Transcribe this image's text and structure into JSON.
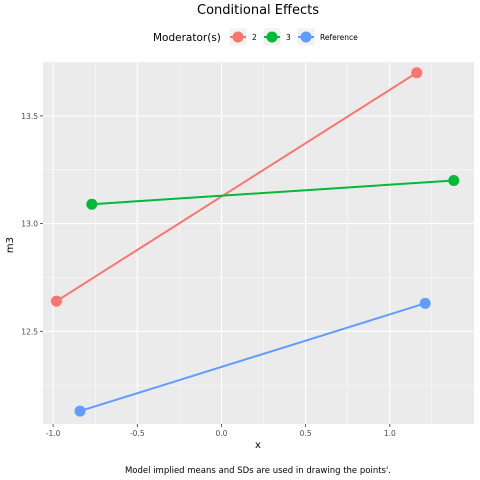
{
  "chart_data": {
    "type": "line",
    "title": "Conditional Effects",
    "xlabel": "x",
    "ylabel": "m3",
    "caption": "Model implied means and SDs are used in drawing the points'.",
    "xlim": [
      -1.06,
      1.5
    ],
    "ylim": [
      12.07,
      13.75
    ],
    "x_ticks": [
      -1.0,
      -0.5,
      0.0,
      0.5,
      1.0
    ],
    "x_tick_labels": [
      "-1.0",
      "-0.5",
      "0.0",
      "0.5",
      "1.0"
    ],
    "y_ticks": [
      12.5,
      13.0,
      13.5
    ],
    "y_tick_labels": [
      "12.5",
      "13.0",
      "13.5"
    ],
    "grid": true,
    "legend": {
      "title": "Moderator(s)",
      "placement": "top"
    },
    "series": [
      {
        "name": "2",
        "color": "#F8766D",
        "points": [
          [
            -0.98,
            12.64
          ],
          [
            1.16,
            13.7
          ]
        ]
      },
      {
        "name": "3",
        "color": "#00BA38",
        "points": [
          [
            -0.77,
            13.09
          ],
          [
            1.38,
            13.2
          ]
        ]
      },
      {
        "name": "Reference",
        "color": "#619CFF",
        "points": [
          [
            -0.84,
            12.13
          ],
          [
            1.21,
            12.63
          ]
        ]
      }
    ]
  }
}
